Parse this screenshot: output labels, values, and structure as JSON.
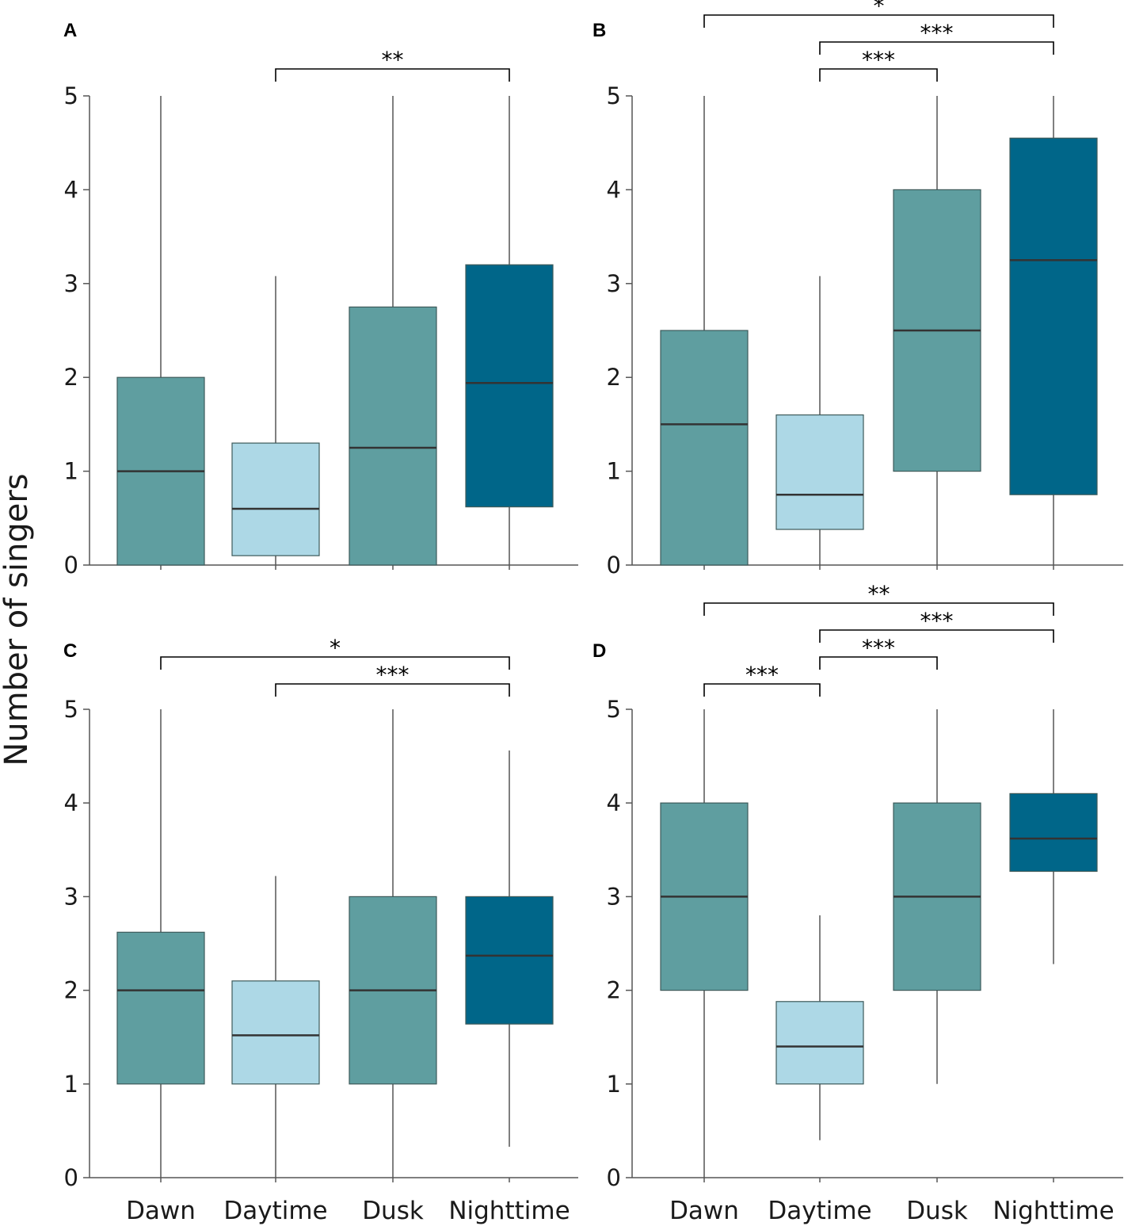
{
  "figure": {
    "ylabel": "Number of singers",
    "colors": {
      "dawn": "#5f9ea0",
      "daytime": "#add8e6",
      "dusk": "#5f9ea0",
      "nighttime": "#006689",
      "median": "#333333",
      "whisker": "#555555",
      "box_edge": "#3d5a5a",
      "axis": "#555555"
    }
  },
  "chart_data": [
    {
      "type": "box",
      "panel": "A",
      "categories": [
        "Dawn",
        "Daytime",
        "Dusk",
        "Nighttime"
      ],
      "ylim": [
        0,
        5
      ],
      "yticks": [
        0,
        1,
        2,
        3,
        4,
        5
      ],
      "show_category_labels": false,
      "boxes": [
        {
          "category": "Dawn",
          "whisker_low": 0,
          "q1": 0,
          "median": 1,
          "q3": 2,
          "whisker_high": 5
        },
        {
          "category": "Daytime",
          "whisker_low": 0,
          "q1": 0.1,
          "median": 0.6,
          "q3": 1.3,
          "whisker_high": 3.08
        },
        {
          "category": "Dusk",
          "whisker_low": 0,
          "q1": 0,
          "median": 1.25,
          "q3": 2.75,
          "whisker_high": 5
        },
        {
          "category": "Nighttime",
          "whisker_low": 0,
          "q1": 0.62,
          "median": 1.94,
          "q3": 3.2,
          "whisker_high": 5
        }
      ],
      "significance": [
        {
          "from": "Daytime",
          "to": "Nighttime",
          "label": "**"
        }
      ]
    },
    {
      "type": "box",
      "panel": "B",
      "categories": [
        "Dawn",
        "Daytime",
        "Dusk",
        "Nighttime"
      ],
      "ylim": [
        0,
        5
      ],
      "yticks": [
        0,
        1,
        2,
        3,
        4,
        5
      ],
      "show_category_labels": false,
      "boxes": [
        {
          "category": "Dawn",
          "whisker_low": 0,
          "q1": 0,
          "median": 1.5,
          "q3": 2.5,
          "whisker_high": 5
        },
        {
          "category": "Daytime",
          "whisker_low": 0,
          "q1": 0.38,
          "median": 0.75,
          "q3": 1.6,
          "whisker_high": 3.08
        },
        {
          "category": "Dusk",
          "whisker_low": 0,
          "q1": 1,
          "median": 2.5,
          "q3": 4,
          "whisker_high": 5
        },
        {
          "category": "Nighttime",
          "whisker_low": 0,
          "q1": 0.75,
          "median": 3.25,
          "q3": 4.55,
          "whisker_high": 5
        }
      ],
      "significance": [
        {
          "from": "Dawn",
          "to": "Nighttime",
          "label": "*"
        },
        {
          "from": "Daytime",
          "to": "Nighttime",
          "label": "***"
        },
        {
          "from": "Daytime",
          "to": "Dusk",
          "label": "***"
        }
      ]
    },
    {
      "type": "box",
      "panel": "C",
      "categories": [
        "Dawn",
        "Daytime",
        "Dusk",
        "Nighttime"
      ],
      "ylim": [
        0,
        5
      ],
      "yticks": [
        0,
        1,
        2,
        3,
        4,
        5
      ],
      "show_category_labels": true,
      "boxes": [
        {
          "category": "Dawn",
          "whisker_low": 0,
          "q1": 1,
          "median": 2,
          "q3": 2.62,
          "whisker_high": 5
        },
        {
          "category": "Daytime",
          "whisker_low": 0,
          "q1": 1,
          "median": 1.52,
          "q3": 2.1,
          "whisker_high": 3.22
        },
        {
          "category": "Dusk",
          "whisker_low": 0,
          "q1": 1,
          "median": 2,
          "q3": 3,
          "whisker_high": 5
        },
        {
          "category": "Nighttime",
          "whisker_low": 0.33,
          "q1": 1.64,
          "median": 2.37,
          "q3": 3,
          "whisker_high": 4.56
        }
      ],
      "significance": [
        {
          "from": "Dawn",
          "to": "Nighttime",
          "label": "*"
        },
        {
          "from": "Daytime",
          "to": "Nighttime",
          "label": "***"
        }
      ]
    },
    {
      "type": "box",
      "panel": "D",
      "categories": [
        "Dawn",
        "Daytime",
        "Dusk",
        "Nighttime"
      ],
      "ylim": [
        0,
        5
      ],
      "yticks": [
        0,
        1,
        2,
        3,
        4,
        5
      ],
      "show_category_labels": true,
      "boxes": [
        {
          "category": "Dawn",
          "whisker_low": 0,
          "q1": 2,
          "median": 3,
          "q3": 4,
          "whisker_high": 5
        },
        {
          "category": "Daytime",
          "whisker_low": 0.4,
          "q1": 1,
          "median": 1.4,
          "q3": 1.88,
          "whisker_high": 2.8
        },
        {
          "category": "Dusk",
          "whisker_low": 1,
          "q1": 2,
          "median": 3,
          "q3": 4,
          "whisker_high": 5
        },
        {
          "category": "Nighttime",
          "whisker_low": 2.28,
          "q1": 3.27,
          "median": 3.62,
          "q3": 4.1,
          "whisker_high": 5
        }
      ],
      "significance": [
        {
          "from": "Dawn",
          "to": "Nighttime",
          "label": "**"
        },
        {
          "from": "Daytime",
          "to": "Nighttime",
          "label": "***"
        },
        {
          "from": "Daytime",
          "to": "Dusk",
          "label": "***"
        },
        {
          "from": "Dawn",
          "to": "Daytime",
          "label": "***"
        }
      ]
    }
  ]
}
